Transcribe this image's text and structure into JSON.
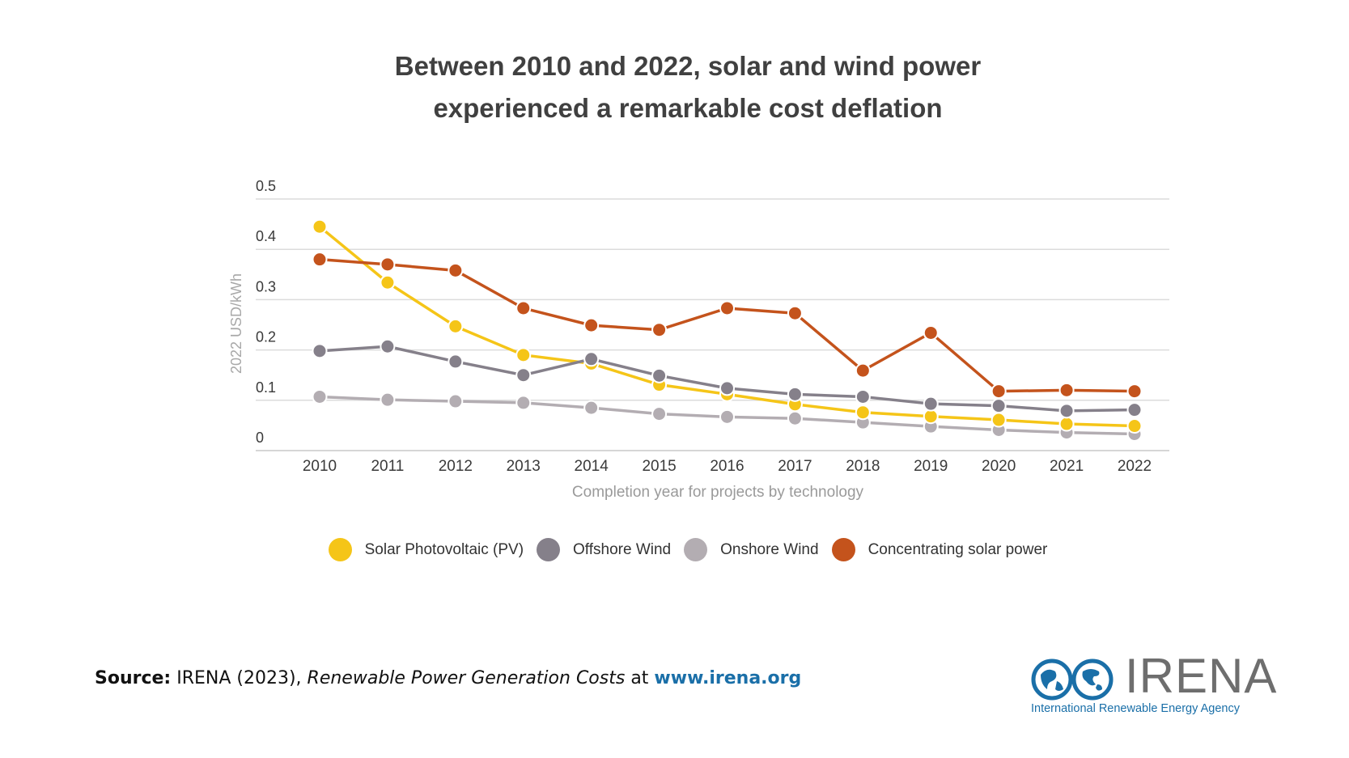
{
  "chart_data": {
    "type": "line",
    "title": [
      "Between 2010 and 2022, solar and wind power",
      "experienced a remarkable cost deflation"
    ],
    "xlabel": "Completion year for projects by technology",
    "ylabel": "2022 USD/kWh",
    "ylim": [
      0,
      0.5
    ],
    "yticks": [
      {
        "value": 0,
        "label": "0"
      },
      {
        "value": 0.1,
        "label": "0.1"
      },
      {
        "value": 0.2,
        "label": "0.2"
      },
      {
        "value": 0.3,
        "label": "0.3"
      },
      {
        "value": 0.4,
        "label": "0.4"
      },
      {
        "value": 0.5,
        "label": "0.5"
      }
    ],
    "categories": [
      "2010",
      "2011",
      "2012",
      "2013",
      "2014",
      "2015",
      "2016",
      "2017",
      "2018",
      "2019",
      "2020",
      "2021",
      "2022"
    ],
    "grid": true,
    "legend_position": "bottom",
    "series": [
      {
        "name": "Solar Photovoltaic (PV)",
        "color": "#f5c518",
        "values": [
          0.445,
          0.334,
          0.247,
          0.19,
          0.173,
          0.131,
          0.112,
          0.092,
          0.076,
          0.068,
          0.061,
          0.053,
          0.049
        ]
      },
      {
        "name": "Offshore Wind",
        "color": "#85808a",
        "values": [
          0.198,
          0.207,
          0.177,
          0.15,
          0.182,
          0.149,
          0.124,
          0.112,
          0.107,
          0.093,
          0.089,
          0.079,
          0.081
        ]
      },
      {
        "name": "Onshore Wind",
        "color": "#b3adb2",
        "values": [
          0.107,
          0.101,
          0.098,
          0.095,
          0.085,
          0.073,
          0.067,
          0.064,
          0.056,
          0.048,
          0.041,
          0.036,
          0.033
        ]
      },
      {
        "name": "Concentrating solar power",
        "color": "#c4531c",
        "values": [
          0.38,
          0.37,
          0.358,
          0.283,
          0.249,
          0.24,
          0.283,
          0.273,
          0.159,
          0.234,
          0.118,
          0.12,
          0.118
        ]
      }
    ]
  },
  "source": {
    "label": "Source:",
    "text": " IRENA (2023), ",
    "publication": "Renewable Power Generation Costs",
    "at": " at ",
    "url": "www.irena.org"
  },
  "logo": {
    "word": "IRENA",
    "subtitle": "International Renewable Energy Agency",
    "colors": {
      "blue": "#1a6fa8",
      "gray": "#6e6e6e"
    }
  }
}
